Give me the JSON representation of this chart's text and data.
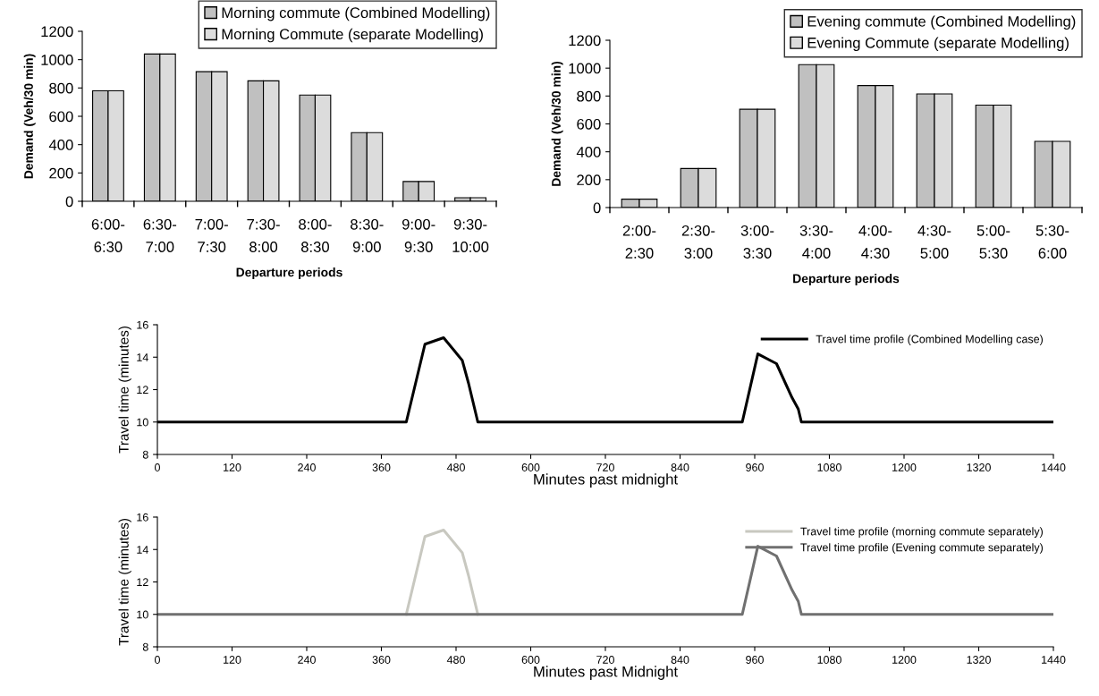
{
  "chart_data": [
    {
      "type": "bar",
      "xlabel": "Departure periods",
      "ylabel": "Demand (Veh/30 min)",
      "categories": [
        "6:00-\n6:30",
        "6:30-\n7:00",
        "7:00-\n7:30",
        "7:30-\n8:00",
        "8:00-\n8:30",
        "8:30-\n9:00",
        "9:00-\n9:30",
        "9:30-\n10:00"
      ],
      "series": [
        {
          "name": "Morning commute (Combined Modelling)",
          "color": "#c0c0c0",
          "values": [
            780,
            1040,
            915,
            850,
            750,
            485,
            140,
            25
          ]
        },
        {
          "name": "Morning Commute (separate Modelling)",
          "color": "#dcdcdc",
          "values": [
            780,
            1040,
            915,
            850,
            750,
            485,
            140,
            25
          ]
        }
      ],
      "ylim": [
        0,
        1200
      ],
      "yticks": [
        0,
        200,
        400,
        600,
        800,
        1000,
        1200
      ],
      "legend": "top right",
      "grid": false
    },
    {
      "type": "bar",
      "xlabel": "Departure periods",
      "ylabel": "Demand (Veh/30 min)",
      "categories": [
        "2:00-\n2:30",
        "2:30-\n3:00",
        "3:00-\n3:30",
        "3:30-\n4:00",
        "4:00-\n4:30",
        "4:30-\n5:00",
        "5:00-\n5:30",
        "5:30-\n6:00"
      ],
      "series": [
        {
          "name": "Evening commute (Combined Modelling)",
          "color": "#c0c0c0",
          "values": [
            60,
            280,
            705,
            1025,
            875,
            815,
            735,
            475
          ]
        },
        {
          "name": "Evening Commute (separate Modelling)",
          "color": "#dcdcdc",
          "values": [
            60,
            280,
            705,
            1025,
            875,
            815,
            735,
            475
          ]
        }
      ],
      "ylim": [
        0,
        1200
      ],
      "yticks": [
        0,
        200,
        400,
        600,
        800,
        1000,
        1200
      ],
      "legend": "top right",
      "grid": false
    },
    {
      "type": "line",
      "xlabel": "Minutes past midnight",
      "ylabel": "Travel time (minutes)",
      "marker": "none",
      "line_style": "solid",
      "series": [
        {
          "name": "Travel time profile (Combined Modelling case)",
          "color": "#000000",
          "x": [
            0,
            400,
            430,
            460,
            490,
            500,
            515,
            940,
            965,
            995,
            1020,
            1030,
            1035,
            1440
          ],
          "values": [
            10,
            10,
            14.8,
            15.2,
            13.8,
            12.4,
            10,
            10,
            14.2,
            13.6,
            11.5,
            10.8,
            10,
            10
          ]
        }
      ],
      "xlim": [
        0,
        1440
      ],
      "xticks": [
        0,
        120,
        240,
        360,
        480,
        600,
        720,
        840,
        960,
        1080,
        1200,
        1320,
        1440
      ],
      "ylim": [
        8,
        16
      ],
      "yticks": [
        8,
        10,
        12,
        14,
        16
      ],
      "legend": "top right",
      "grid": false
    },
    {
      "type": "line",
      "xlabel": "Minutes past Midnight",
      "ylabel": "Travel time (minutes)",
      "marker": "none",
      "line_style": "solid",
      "series": [
        {
          "name": "Travel time profile (morning commute separately)",
          "color": "#c8c8c0",
          "x": [
            400,
            430,
            460,
            490,
            500,
            515
          ],
          "values": [
            10,
            14.8,
            15.2,
            13.8,
            12.4,
            10
          ]
        },
        {
          "name": "Travel time profile (Evening commute separately)",
          "color": "#707070",
          "x": [
            0,
            940,
            965,
            995,
            1020,
            1030,
            1035,
            1440
          ],
          "values": [
            10,
            10,
            14.2,
            13.6,
            11.5,
            10.8,
            10,
            10
          ]
        }
      ],
      "xlim": [
        0,
        1440
      ],
      "xticks": [
        0,
        120,
        240,
        360,
        480,
        600,
        720,
        840,
        960,
        1080,
        1200,
        1320,
        1440
      ],
      "ylim": [
        8,
        16
      ],
      "yticks": [
        8,
        10,
        12,
        14,
        16
      ],
      "legend": "top right",
      "grid": false
    }
  ]
}
